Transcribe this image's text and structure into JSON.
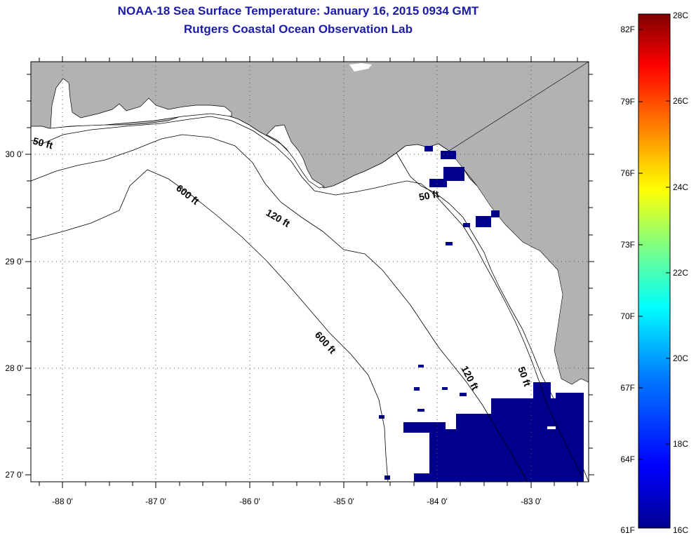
{
  "title": "NOAA-18 Sea Surface Temperature:  January 16, 2015 0934 GMT",
  "subtitle": "Rutgers Coastal Ocean Observation Lab",
  "lat_labels": [
    "30 0'",
    "29 0'",
    "28 0'",
    "27 0'"
  ],
  "lon_labels": [
    "-88 0'",
    "-87 0'",
    "-86 0'",
    "-85 0'",
    "-84 0'",
    "-83 0'"
  ],
  "contours": {
    "c50_west": "50 ft",
    "c50_east": "50 ft",
    "c50_south": "50 ft",
    "c120_north": "120 ft",
    "c120_south": "120 ft",
    "c600_north": "600 ft",
    "c600_south": "600 ft"
  },
  "colorbar": {
    "fahrenheit": [
      "82F",
      "79F",
      "76F",
      "73F",
      "70F",
      "67F",
      "64F",
      "61F"
    ],
    "celsius": [
      "28C",
      "26C",
      "24C",
      "22C",
      "20C",
      "18C",
      "16C"
    ],
    "colors": [
      "#00008f",
      "#0000ff",
      "#0080ff",
      "#00ffff",
      "#80ff80",
      "#ffff00",
      "#ff8000",
      "#ff0000",
      "#800000"
    ]
  },
  "colors": {
    "land": "#b2b2b2",
    "cold_water": "#00008c",
    "title": "#1a1aa8"
  }
}
